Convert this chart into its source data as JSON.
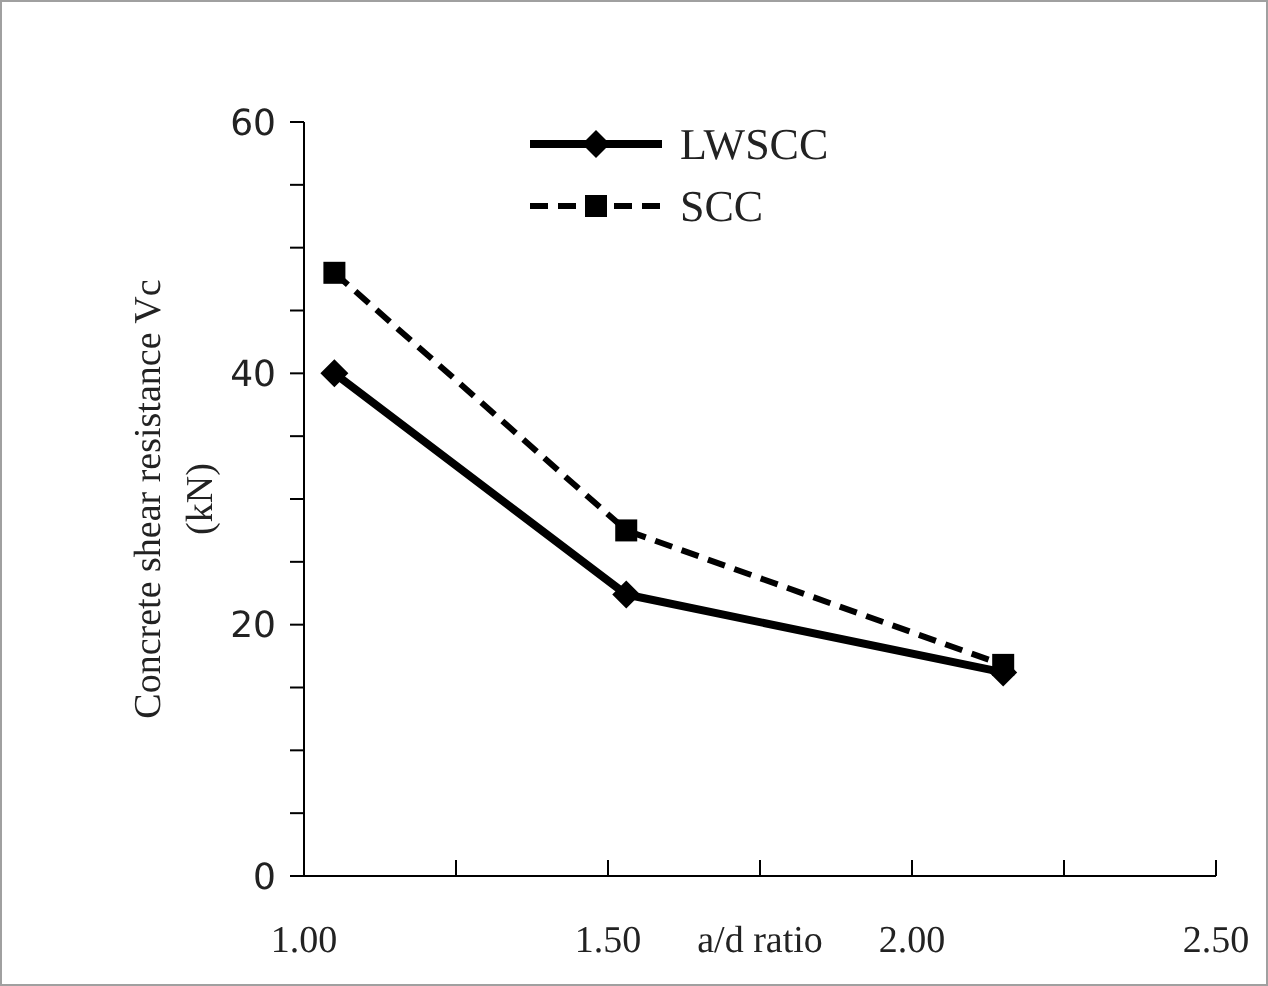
{
  "chart_data": {
    "type": "line",
    "xlabel": "a/d ratio",
    "ylabel": "Concrete shear resistance Vc (kN)",
    "xlim": [
      1,
      2.5
    ],
    "xticks": [
      {
        "value": 1,
        "label": "1.00"
      },
      {
        "value": 1.25,
        "label": null
      },
      {
        "value": 1.5,
        "label": "1.50"
      },
      {
        "value": 1.75,
        "label": null
      },
      {
        "value": 2,
        "label": "2.00"
      },
      {
        "value": 2.25,
        "label": null
      },
      {
        "value": 2.5,
        "label": "2.50"
      }
    ],
    "ylim": [
      0,
      60
    ],
    "yticks": [
      0,
      {
        "value": 5,
        "label": null
      },
      {
        "value": 10,
        "label": null
      },
      {
        "value": 15,
        "label": null
      },
      20,
      {
        "value": 25,
        "label": null
      },
      {
        "value": 30,
        "label": null
      },
      {
        "value": 35,
        "label": null
      },
      40,
      {
        "value": 45,
        "label": null
      },
      {
        "value": 50,
        "label": null
      },
      {
        "value": 55,
        "label": null
      },
      60
    ],
    "legend": "top",
    "grid": false,
    "series": [
      {
        "name": "LWSCC",
        "color": "#000000",
        "marker": "diamond",
        "line_style": "solid",
        "x": [
          1.05,
          1.53,
          2.15
        ],
        "values": [
          40,
          22.4,
          16.2
        ]
      },
      {
        "name": "SCC",
        "color": "#000000",
        "marker": "square",
        "line_style": "dashed",
        "x": [
          1.05,
          1.53,
          2.15
        ],
        "values": [
          48,
          27.5,
          16.8
        ]
      }
    ]
  }
}
